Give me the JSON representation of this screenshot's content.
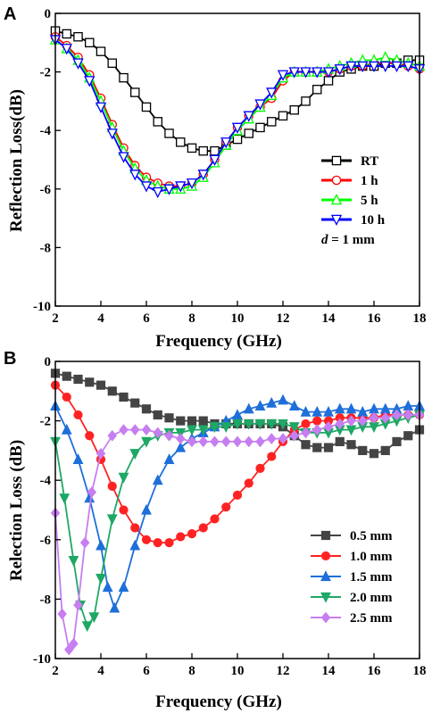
{
  "chart_data": [
    {
      "panel_label": "A",
      "type": "line",
      "xlabel": "Frequency (GHz)",
      "ylabel": "Reflection Loss(dB)",
      "xlim": [
        2,
        18
      ],
      "ylim": [
        -10,
        0
      ],
      "xticks": [
        2,
        4,
        6,
        8,
        10,
        12,
        14,
        16,
        18
      ],
      "yticks": [
        -10,
        -8,
        -6,
        -4,
        -2,
        0
      ],
      "grid": false,
      "legend_position": "right-middle",
      "legend_note": "d = 1 mm",
      "marker_fill": "open",
      "series": [
        {
          "name": "RT",
          "color": "#000000",
          "marker": "square",
          "x": [
            2.0,
            2.5,
            3.0,
            3.5,
            4.0,
            4.5,
            5.0,
            5.5,
            6.0,
            6.5,
            7.0,
            7.5,
            8.0,
            8.5,
            9.0,
            9.5,
            10.0,
            10.5,
            11.0,
            11.5,
            12.0,
            12.5,
            13.0,
            13.5,
            14.0,
            14.5,
            15.0,
            15.5,
            16.0,
            16.5,
            17.0,
            17.5,
            18.0
          ],
          "y": [
            -0.6,
            -0.7,
            -0.8,
            -1.0,
            -1.3,
            -1.7,
            -2.2,
            -2.7,
            -3.2,
            -3.7,
            -4.1,
            -4.4,
            -4.6,
            -4.7,
            -4.7,
            -4.5,
            -4.3,
            -4.1,
            -3.9,
            -3.7,
            -3.5,
            -3.3,
            -3.0,
            -2.6,
            -2.3,
            -2.0,
            -1.9,
            -1.8,
            -1.8,
            -1.7,
            -1.7,
            -1.6,
            -1.6
          ]
        },
        {
          "name": "1 h",
          "color": "#ff0000",
          "marker": "circle",
          "x": [
            2.0,
            2.5,
            3.0,
            3.5,
            4.0,
            4.5,
            5.0,
            5.5,
            6.0,
            6.5,
            7.0,
            7.5,
            8.0,
            8.5,
            9.0,
            9.5,
            10.0,
            10.5,
            11.0,
            11.5,
            12.0,
            12.5,
            13.0,
            13.5,
            14.0,
            14.5,
            15.0,
            15.5,
            16.0,
            16.5,
            17.0,
            17.5,
            18.0
          ],
          "y": [
            -0.8,
            -1.1,
            -1.5,
            -2.1,
            -2.9,
            -3.8,
            -4.6,
            -5.2,
            -5.6,
            -5.8,
            -5.9,
            -5.9,
            -5.8,
            -5.5,
            -5.0,
            -4.4,
            -3.9,
            -3.5,
            -3.2,
            -2.9,
            -2.3,
            -2.0,
            -2.0,
            -2.0,
            -2.0,
            -1.9,
            -1.8,
            -1.8,
            -1.7,
            -1.7,
            -1.7,
            -1.8,
            -1.9
          ]
        },
        {
          "name": "5 h",
          "color": "#00ff00",
          "marker": "triangle-up",
          "x": [
            2.0,
            2.5,
            3.0,
            3.5,
            4.0,
            4.5,
            5.0,
            5.5,
            6.0,
            6.5,
            7.0,
            7.5,
            8.0,
            8.5,
            9.0,
            9.5,
            10.0,
            10.5,
            11.0,
            11.5,
            12.0,
            12.5,
            13.0,
            13.5,
            14.0,
            14.5,
            15.0,
            15.5,
            16.0,
            16.5,
            17.0,
            17.5,
            18.0
          ],
          "y": [
            -0.9,
            -1.2,
            -1.6,
            -2.2,
            -3.0,
            -3.9,
            -4.7,
            -5.3,
            -5.7,
            -5.9,
            -6.0,
            -6.0,
            -5.9,
            -5.6,
            -5.1,
            -4.5,
            -4.0,
            -3.6,
            -3.2,
            -2.8,
            -2.2,
            -2.0,
            -2.0,
            -2.0,
            -1.9,
            -1.8,
            -1.7,
            -1.6,
            -1.6,
            -1.5,
            -1.6,
            -1.7,
            -1.8
          ]
        },
        {
          "name": "10 h",
          "color": "#0000ff",
          "marker": "triangle-down",
          "x": [
            2.0,
            2.5,
            3.0,
            3.5,
            4.0,
            4.5,
            5.0,
            5.5,
            6.0,
            6.5,
            7.0,
            7.5,
            8.0,
            8.5,
            9.0,
            9.5,
            10.0,
            10.5,
            11.0,
            11.5,
            12.0,
            12.5,
            13.0,
            13.5,
            14.0,
            14.5,
            15.0,
            15.5,
            16.0,
            16.5,
            17.0,
            17.5,
            18.0
          ],
          "y": [
            -0.9,
            -1.2,
            -1.7,
            -2.3,
            -3.2,
            -4.1,
            -4.9,
            -5.5,
            -5.9,
            -6.1,
            -6.0,
            -5.9,
            -5.8,
            -5.5,
            -5.0,
            -4.4,
            -3.9,
            -3.5,
            -3.1,
            -2.7,
            -2.1,
            -2.0,
            -2.0,
            -2.0,
            -2.0,
            -1.9,
            -1.8,
            -1.8,
            -1.8,
            -1.8,
            -1.8,
            -1.8,
            -1.9
          ]
        }
      ]
    },
    {
      "panel_label": "B",
      "type": "line",
      "xlabel": "Frequency (GHz)",
      "ylabel": "Relection Loss (dB)",
      "xlim": [
        2,
        18
      ],
      "ylim": [
        -10,
        0
      ],
      "xticks": [
        2,
        4,
        6,
        8,
        10,
        12,
        14,
        16,
        18
      ],
      "yticks": [
        -10,
        -8,
        -6,
        -4,
        -2,
        0
      ],
      "grid": false,
      "legend_position": "bottom-right",
      "marker_fill": "filled",
      "series": [
        {
          "name": "0.5 mm",
          "color": "#444444",
          "marker": "square",
          "x": [
            2.0,
            2.5,
            3.0,
            3.5,
            4.0,
            4.5,
            5.0,
            5.5,
            6.0,
            6.5,
            7.0,
            7.5,
            8.0,
            8.5,
            9.0,
            9.5,
            10.0,
            10.5,
            11.0,
            11.5,
            12.0,
            12.5,
            13.0,
            13.5,
            14.0,
            14.5,
            15.0,
            15.5,
            16.0,
            16.5,
            17.0,
            17.5,
            18.0
          ],
          "y": [
            -0.4,
            -0.5,
            -0.6,
            -0.7,
            -0.8,
            -1.0,
            -1.2,
            -1.4,
            -1.6,
            -1.8,
            -1.9,
            -2.0,
            -2.0,
            -2.0,
            -2.1,
            -2.1,
            -2.1,
            -2.1,
            -2.1,
            -2.1,
            -2.2,
            -2.5,
            -2.8,
            -2.9,
            -2.9,
            -2.7,
            -2.8,
            -3.0,
            -3.1,
            -3.0,
            -2.7,
            -2.5,
            -2.3
          ]
        },
        {
          "name": "1.0 mm",
          "color": "#ff2222",
          "marker": "circle",
          "x": [
            2.0,
            2.5,
            3.0,
            3.5,
            4.0,
            4.5,
            5.0,
            5.5,
            6.0,
            6.5,
            7.0,
            7.5,
            8.0,
            8.5,
            9.0,
            9.5,
            10.0,
            10.5,
            11.0,
            11.5,
            12.0,
            12.5,
            13.0,
            13.5,
            14.0,
            14.5,
            15.0,
            15.5,
            16.0,
            16.5,
            17.0,
            17.5,
            18.0
          ],
          "y": [
            -0.8,
            -1.2,
            -1.8,
            -2.5,
            -3.3,
            -4.2,
            -5.0,
            -5.6,
            -6.0,
            -6.1,
            -6.1,
            -5.9,
            -5.8,
            -5.6,
            -5.3,
            -4.9,
            -4.5,
            -4.1,
            -3.6,
            -3.2,
            -2.7,
            -2.3,
            -2.1,
            -2.0,
            -2.0,
            -1.9,
            -1.9,
            -1.9,
            -1.9,
            -1.8,
            -1.8,
            -1.8,
            -1.8
          ]
        },
        {
          "name": "1.5 mm",
          "color": "#1e6fd9",
          "marker": "triangle-up",
          "x": [
            2.0,
            2.5,
            3.0,
            3.5,
            4.0,
            4.3,
            4.6,
            5.0,
            5.5,
            6.0,
            6.5,
            7.0,
            7.5,
            8.0,
            8.5,
            9.0,
            9.5,
            10.0,
            10.5,
            11.0,
            11.5,
            12.0,
            12.5,
            13.0,
            13.5,
            14.0,
            14.5,
            15.0,
            15.5,
            16.0,
            16.5,
            17.0,
            17.5,
            18.0
          ],
          "y": [
            -1.5,
            -2.3,
            -3.3,
            -4.6,
            -6.2,
            -7.6,
            -8.3,
            -7.6,
            -6.2,
            -5.0,
            -4.0,
            -3.3,
            -2.9,
            -2.6,
            -2.4,
            -2.2,
            -2.0,
            -1.8,
            -1.6,
            -1.5,
            -1.4,
            -1.3,
            -1.5,
            -1.7,
            -1.7,
            -1.7,
            -1.6,
            -1.6,
            -1.7,
            -1.6,
            -1.6,
            -1.6,
            -1.5,
            -1.5
          ]
        },
        {
          "name": "2.0 mm",
          "color": "#1ea865",
          "marker": "triangle-down",
          "x": [
            2.0,
            2.4,
            2.8,
            3.1,
            3.4,
            3.7,
            4.0,
            4.5,
            5.0,
            5.5,
            6.0,
            6.5,
            7.0,
            7.5,
            8.0,
            8.5,
            9.0,
            9.5,
            10.0,
            10.5,
            11.0,
            11.5,
            12.0,
            12.5,
            13.0,
            13.5,
            14.0,
            14.5,
            15.0,
            15.5,
            16.0,
            16.5,
            17.0,
            17.5,
            18.0
          ],
          "y": [
            -2.7,
            -4.6,
            -6.7,
            -8.2,
            -8.9,
            -8.6,
            -7.3,
            -5.3,
            -3.9,
            -3.1,
            -2.7,
            -2.5,
            -2.4,
            -2.4,
            -2.3,
            -2.3,
            -2.2,
            -2.2,
            -2.1,
            -2.1,
            -2.1,
            -2.1,
            -2.1,
            -2.2,
            -2.4,
            -2.4,
            -2.4,
            -2.3,
            -2.3,
            -2.2,
            -2.2,
            -2.1,
            -2.0,
            -1.9,
            -1.8
          ]
        },
        {
          "name": "2.5 mm",
          "color": "#c77ef0",
          "marker": "diamond",
          "x": [
            2.0,
            2.3,
            2.6,
            2.8,
            3.0,
            3.3,
            3.6,
            4.0,
            4.5,
            5.0,
            5.5,
            6.0,
            6.5,
            7.0,
            7.5,
            8.0,
            8.5,
            9.0,
            9.5,
            10.0,
            10.5,
            11.0,
            11.5,
            12.0,
            12.5,
            13.0,
            13.5,
            14.0,
            14.5,
            15.0,
            15.5,
            16.0,
            16.5,
            17.0,
            17.5,
            18.0
          ],
          "y": [
            -5.1,
            -8.5,
            -9.7,
            -9.5,
            -8.2,
            -6.1,
            -4.4,
            -3.1,
            -2.5,
            -2.3,
            -2.3,
            -2.3,
            -2.4,
            -2.5,
            -2.6,
            -2.7,
            -2.7,
            -2.7,
            -2.7,
            -2.7,
            -2.7,
            -2.7,
            -2.6,
            -2.6,
            -2.5,
            -2.4,
            -2.3,
            -2.2,
            -2.1,
            -2.0,
            -2.0,
            -1.9,
            -1.9,
            -1.8,
            -1.8,
            -1.8
          ]
        }
      ]
    }
  ]
}
